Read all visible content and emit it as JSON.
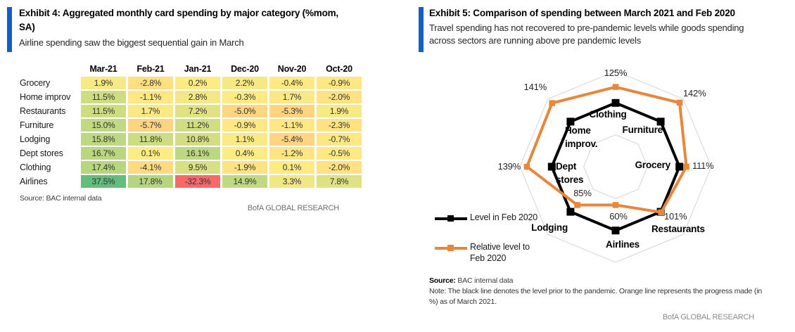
{
  "colors": {
    "accent_blue": "#1161C5",
    "orange": "#E8873B",
    "black": "#000000",
    "grid_gray": "#DBDBDB",
    "heat_min": "#F8696B",
    "heat_mid": "#FFEB84",
    "heat_max": "#63BE7B"
  },
  "left_panel": {
    "exhibit_title": "Exhibit 4: Aggregated monthly card spending by major category (%mom, SA)",
    "subtitle": "Airline spending saw the biggest sequential gain in March",
    "source": "Source: BAC internal data",
    "branding": "BofA GLOBAL RESEARCH"
  },
  "right_panel": {
    "exhibit_title": "Exhibit 5: Comparison of spending between March 2021 and Feb 2020",
    "subtitle": "Travel spending has not recovered to pre-pandemic levels while goods spending across sectors are running above pre pandemic levels",
    "source_label": "Source:",
    "source_text": "BAC internal data",
    "note": "Note: The black line denotes the level prior to the pandemic. Orange line represents the progress made (in %) as of March 2021.",
    "branding": "BofA GLOBAL RESEARCH",
    "legend": [
      {
        "label": "Level in Feb 2020",
        "color": "#000000"
      },
      {
        "label": "Relative level to Feb 2020",
        "color": "#E8873B"
      }
    ]
  },
  "chart_data": [
    {
      "type": "heatmap",
      "title": "Aggregated monthly card spending by major category (%mom, SA)",
      "columns": [
        "Mar-21",
        "Feb-21",
        "Jan-21",
        "Dec-20",
        "Nov-20",
        "Oct-20"
      ],
      "rows": [
        "Grocery",
        "Home improv",
        "Restaurants",
        "Furniture",
        "Lodging",
        "Dept stores",
        "Clothing",
        "Airlines"
      ],
      "values": [
        [
          1.9,
          -2.8,
          0.2,
          2.2,
          -0.4,
          -0.9
        ],
        [
          11.5,
          -1.1,
          2.8,
          -0.3,
          1.7,
          -2.0
        ],
        [
          11.5,
          1.7,
          7.2,
          -5.0,
          -5.3,
          1.9
        ],
        [
          15.0,
          -5.7,
          11.2,
          -0.9,
          -1.1,
          -2.3
        ],
        [
          15.8,
          11.8,
          10.8,
          1.1,
          -5.4,
          -0.7
        ],
        [
          16.7,
          0.1,
          16.1,
          0.4,
          -1.2,
          -0.5
        ],
        [
          17.4,
          -4.1,
          9.5,
          -1.9,
          0.1,
          -2.0
        ],
        [
          37.5,
          17.8,
          -32.3,
          14.9,
          3.3,
          7.8
        ]
      ],
      "value_suffix": "%",
      "color_scale": {
        "min": -32.3,
        "mid": 0,
        "max": 37.5,
        "min_color": "#F8696B",
        "mid_color": "#FFEB84",
        "max_color": "#63BE7B"
      }
    },
    {
      "type": "radar",
      "categories": [
        "Clothing",
        "Furniture",
        "Grocery",
        "Restaurants",
        "Airlines",
        "Lodging",
        "Dept stores",
        "Home improv."
      ],
      "series": [
        {
          "name": "Level in Feb 2020",
          "color": "#000000",
          "values": [
            100,
            100,
            100,
            100,
            100,
            100,
            100,
            100
          ]
        },
        {
          "name": "Relative level to Feb 2020",
          "color": "#E8873B",
          "values": [
            125,
            142,
            111,
            101,
            60,
            85,
            139,
            141
          ]
        }
      ],
      "value_labels": [
        "125%",
        "142%",
        "111%",
        "101%",
        "60%",
        "85%",
        "139%",
        "141%"
      ],
      "grid_rings": [
        50,
        150
      ],
      "rmax": 150,
      "legend_position": "left"
    }
  ]
}
